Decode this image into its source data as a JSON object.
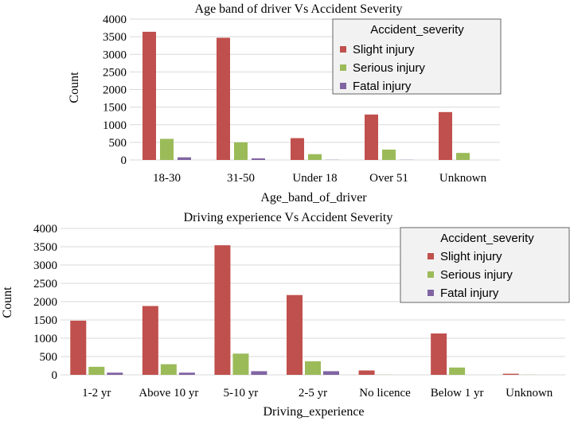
{
  "chart_data": [
    {
      "type": "bar",
      "title": "Age band of driver Vs Accident Severity",
      "xlabel": "Age_band_of_driver",
      "ylabel": "Count",
      "ylim": [
        0,
        4000
      ],
      "yticks": [
        "0",
        "500",
        "1000",
        "1500",
        "2000",
        "2500",
        "3000",
        "3500",
        "4000"
      ],
      "categories": [
        "18-30",
        "31-50",
        "Under 18",
        "Over 51",
        "Unknown"
      ],
      "series": [
        {
          "name": "Slight injury",
          "color": "#c0504d",
          "values": [
            3640,
            3470,
            620,
            1290,
            1360
          ]
        },
        {
          "name": "Serious injury",
          "color": "#9bbb59",
          "values": [
            600,
            500,
            165,
            295,
            200
          ]
        },
        {
          "name": "Fatal injury",
          "color": "#8064a2",
          "values": [
            75,
            45,
            5,
            5,
            0
          ]
        }
      ],
      "legend": {
        "title": "Accident_severity",
        "position": "top-right"
      },
      "grid": true
    },
    {
      "type": "bar",
      "title": "Driving experience Vs Accident Severity",
      "xlabel": "Driving_experience",
      "ylabel": "Count",
      "ylim": [
        0,
        4000
      ],
      "yticks": [
        "0",
        "500",
        "1000",
        "1500",
        "2000",
        "2500",
        "3000",
        "3500",
        "4000"
      ],
      "categories": [
        "1-2 yr",
        "Above 10 yr",
        "5-10 yr",
        "2-5 yr",
        "No licence",
        "Below 1 yr",
        "Unknown"
      ],
      "series": [
        {
          "name": "Slight injury",
          "color": "#c0504d",
          "values": [
            1480,
            1880,
            3540,
            2180,
            120,
            1130,
            30
          ]
        },
        {
          "name": "Serious injury",
          "color": "#9bbb59",
          "values": [
            220,
            290,
            580,
            370,
            5,
            200,
            5
          ]
        },
        {
          "name": "Fatal injury",
          "color": "#8064a2",
          "values": [
            60,
            60,
            100,
            100,
            0,
            0,
            0
          ]
        }
      ],
      "legend": {
        "title": "Accident_severity",
        "position": "top-right"
      },
      "grid": true
    }
  ]
}
